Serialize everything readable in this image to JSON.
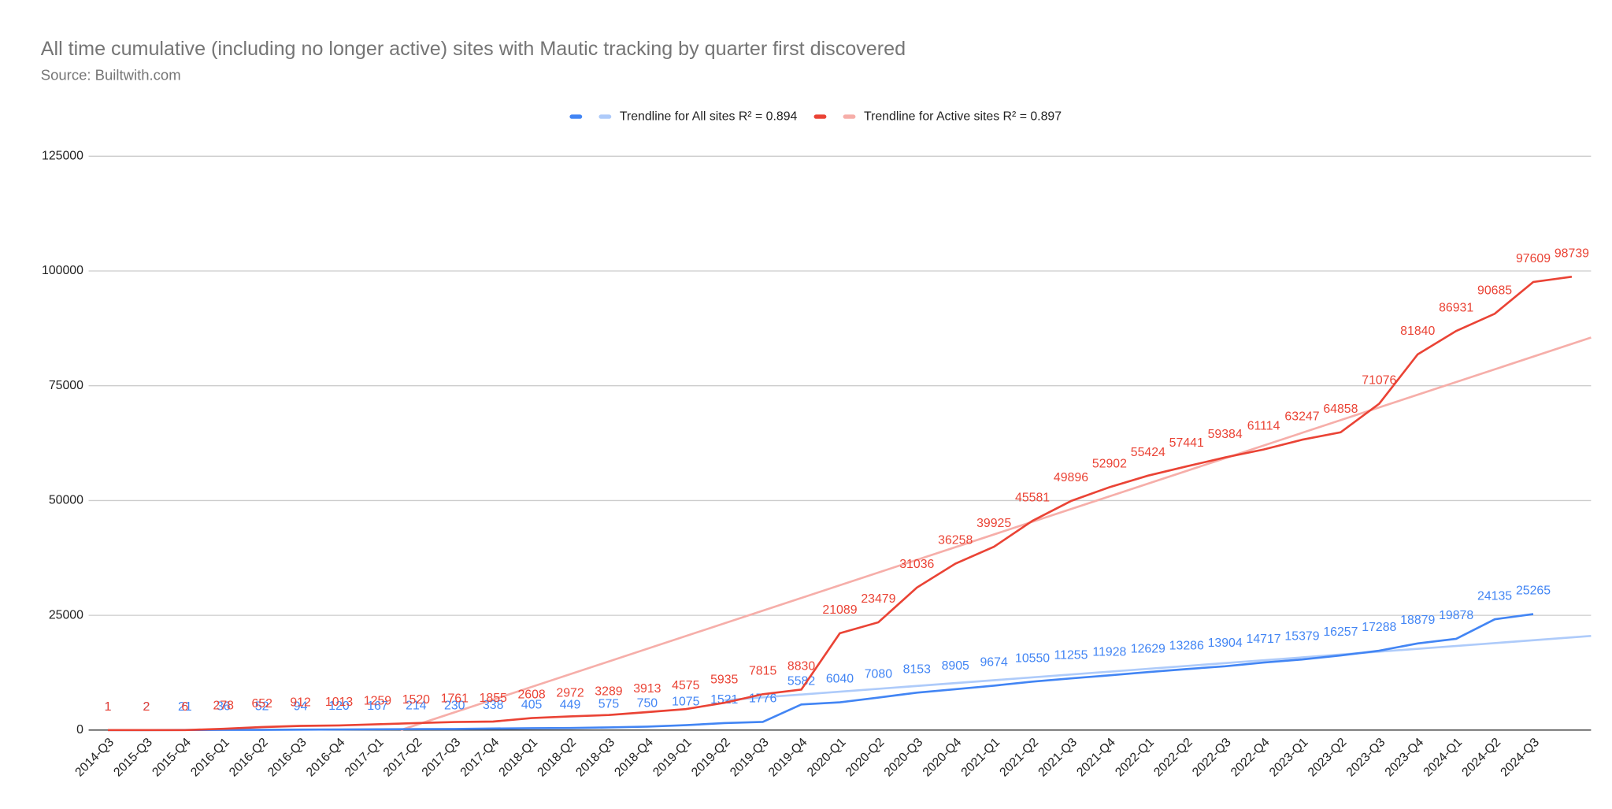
{
  "chart_data": {
    "type": "line",
    "title": "All time cumulative (including no longer active) sites with Mautic tracking by quarter first discovered",
    "subtitle": "Source: Builtwith.com",
    "categories": [
      "2014-Q3",
      "2015-Q3",
      "2015-Q4",
      "2016-Q1",
      "2016-Q2",
      "2016-Q3",
      "2016-Q4",
      "2017-Q1",
      "2017-Q2",
      "2017-Q3",
      "2017-Q4",
      "2018-Q1",
      "2018-Q2",
      "2018-Q3",
      "2018-Q4",
      "2019-Q1",
      "2019-Q2",
      "2019-Q3",
      "2019-Q4",
      "2020-Q1",
      "2020-Q2",
      "2020-Q3",
      "2020-Q4",
      "2021-Q1",
      "2021-Q2",
      "2021-Q3",
      "2021-Q4",
      "2022-Q1",
      "2022-Q2",
      "2022-Q3",
      "2022-Q4",
      "2023-Q1",
      "2023-Q2",
      "2023-Q3",
      "2023-Q4",
      "2024-Q1",
      "2024-Q2",
      "2024-Q3",
      null
    ],
    "series": [
      {
        "color": "#4285f4",
        "values": [
          1,
          2,
          21,
          36,
          52,
          94,
          120,
          167,
          214,
          230,
          338,
          405,
          449,
          575,
          750,
          1075,
          1521,
          1776,
          5582,
          6040,
          7080,
          8153,
          8905,
          9674,
          10550,
          11255,
          11928,
          12629,
          13286,
          13904,
          14717,
          15379,
          16257,
          17288,
          18879,
          19878,
          24135,
          25265,
          null
        ]
      },
      {
        "color": "#ea4335",
        "values": [
          1,
          2,
          6,
          278,
          652,
          912,
          1013,
          1259,
          1520,
          1761,
          1855,
          2608,
          2972,
          3289,
          3913,
          4575,
          5935,
          7815,
          8830,
          21089,
          23479,
          31036,
          36258,
          39925,
          45581,
          49896,
          52902,
          55424,
          57441,
          59384,
          61114,
          63247,
          64858,
          71076,
          81840,
          86931,
          90685,
          97609,
          98739
        ]
      }
    ],
    "trendlines": [
      {
        "name": "Trendline for All sites R² = 0.894",
        "color": "#aecbfa",
        "x": [
          16,
          38.5
        ],
        "values": [
          6500,
          20500
        ]
      },
      {
        "name": "Trendline for Active sites R² = 0.897",
        "color": "#f6aea9",
        "x": [
          7.6,
          38.5
        ],
        "values": [
          0,
          85500
        ]
      }
    ],
    "ylim": [
      0,
      125000
    ],
    "yticks": [
      0,
      25000,
      50000,
      75000,
      100000,
      125000
    ],
    "grid": true,
    "legend": "top"
  }
}
